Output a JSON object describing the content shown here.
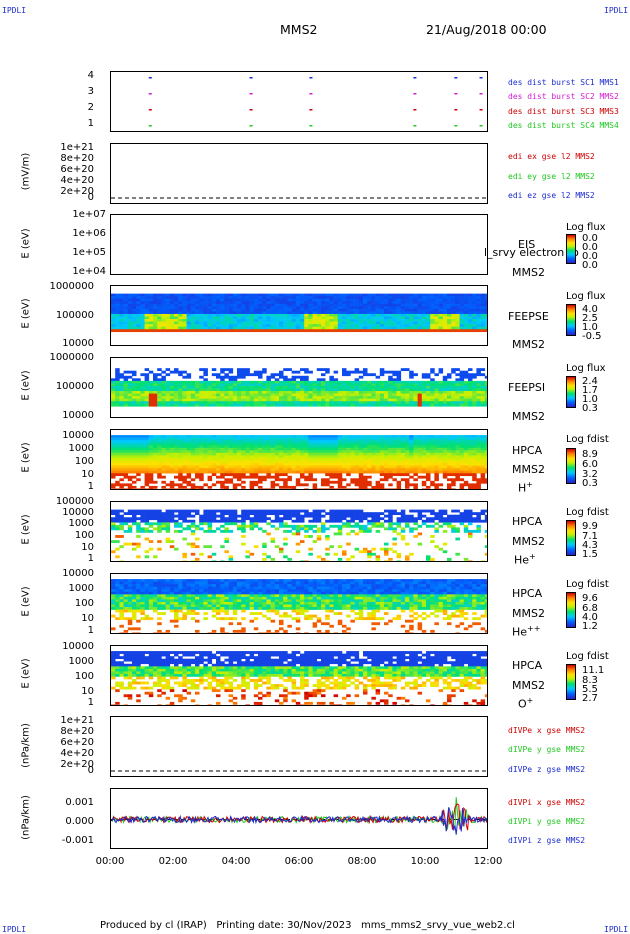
{
  "header": {
    "corner_left_top": "IPDLI",
    "corner_right_top": "IPDLI",
    "corner_left_bottom": "IPDLI",
    "corner_right_bottom": "IPDLI",
    "title": "MMS2",
    "date": "21/Aug/2018 00:00"
  },
  "panels": {
    "p1": {
      "yticks": [
        "4",
        "3",
        "2",
        "1"
      ],
      "legend": [
        {
          "text": "des dist burst SC1 MMS1",
          "color": "#1c2bd0"
        },
        {
          "text": "des dist burst SC2 MMS2",
          "color": "#d21cd2"
        },
        {
          "text": "des dist burst SC3 MMS3",
          "color": "#d00000"
        },
        {
          "text": "des dist burst SC4 MMS4",
          "color": "#20c820"
        }
      ]
    },
    "p2": {
      "ylabel": "(mV/m)",
      "yticks": [
        "1e+21",
        "8e+20",
        "6e+20",
        "4e+20",
        "2e+20",
        "0"
      ],
      "legend": [
        {
          "text": "edi ex gse l2 MMS2",
          "color": "#d00000"
        },
        {
          "text": "edi ey gse l2 MMS2",
          "color": "#20c820"
        },
        {
          "text": "edi ez gse l2 MMS2",
          "color": "#1c2bd0"
        }
      ]
    },
    "p3": {
      "ylabel": "E (eV)",
      "yticks": [
        "1e+07",
        "1e+06",
        "1e+05",
        "1e+04"
      ],
      "instrument": "EIS",
      "overlay": "l_srvy electron to",
      "spacecraft": "MMS2",
      "cb_title": "Log flux",
      "cb_values": [
        "0.0",
        "0.0",
        "0.0",
        "0.0"
      ]
    },
    "p4": {
      "ylabel": "E (eV)",
      "yticks": [
        "1000000",
        "100000",
        "10000"
      ],
      "instrument": "FEEPSE",
      "spacecraft": "MMS2",
      "cb_title": "Log flux",
      "cb_values": [
        "4.0",
        "2.5",
        "1.0",
        "-0.5"
      ]
    },
    "p5": {
      "ylabel": "E (eV)",
      "yticks": [
        "1000000",
        "100000",
        "10000"
      ],
      "instrument": "FEEPSI",
      "spacecraft": "MMS2",
      "cb_title": "Log flux",
      "cb_values": [
        "2.4",
        "1.7",
        "1.0",
        "0.3"
      ]
    },
    "p6": {
      "ylabel": "E (eV)",
      "yticks": [
        "10000",
        "1000",
        "100",
        "10",
        "1"
      ],
      "instrument": "HPCA",
      "spacecraft": "MMS2",
      "species": "H",
      "species_sup": "+",
      "cb_title": "Log fdist",
      "cb_values": [
        "8.9",
        "6.0",
        "3.2",
        "0.3"
      ]
    },
    "p7": {
      "ylabel": "E (eV)",
      "yticks": [
        "100000",
        "10000",
        "1000",
        "100",
        "10",
        "1"
      ],
      "instrument": "HPCA",
      "spacecraft": "MMS2",
      "species": "He",
      "species_sup": "+",
      "cb_title": "Log fdist",
      "cb_values": [
        "9.9",
        "7.1",
        "4.3",
        "1.5"
      ]
    },
    "p8": {
      "ylabel": "E (eV)",
      "yticks": [
        "10000",
        "1000",
        "100",
        "10",
        "1"
      ],
      "instrument": "HPCA",
      "spacecraft": "MMS2",
      "species": "He",
      "species_sup": "++",
      "cb_title": "Log fdist",
      "cb_values": [
        "9.6",
        "6.8",
        "4.0",
        "1.2"
      ]
    },
    "p9": {
      "ylabel": "E (eV)",
      "yticks": [
        "10000",
        "1000",
        "100",
        "10",
        "1"
      ],
      "instrument": "HPCA",
      "spacecraft": "MMS2",
      "species": "O",
      "species_sup": "+",
      "cb_title": "Log fdist",
      "cb_values": [
        "11.1",
        "8.3",
        "5.5",
        "2.7"
      ]
    },
    "p10": {
      "ylabel": "(nPa/km)",
      "yticks": [
        "1e+21",
        "8e+20",
        "6e+20",
        "4e+20",
        "2e+20",
        "0"
      ],
      "legend": [
        {
          "text": "dIVPe x gse MMS2",
          "color": "#d00000"
        },
        {
          "text": "dIVPe y gse MMS2",
          "color": "#20c820"
        },
        {
          "text": "dIVPe z gse MMS2",
          "color": "#1c2bd0"
        }
      ]
    },
    "p11": {
      "ylabel": "(nPa/km)",
      "yticks": [
        "0.001",
        "0.000",
        "-0.001"
      ],
      "legend": [
        {
          "text": "dIVPi x gse MMS2",
          "color": "#d00000"
        },
        {
          "text": "dIVPi y gse MMS2",
          "color": "#20c820"
        },
        {
          "text": "dIVPi z gse MMS2",
          "color": "#1c2bd0"
        }
      ]
    }
  },
  "xaxis": {
    "ticks": [
      "00:00",
      "02:00",
      "04:00",
      "06:00",
      "08:00",
      "10:00",
      "12:00"
    ]
  },
  "footer": "Produced by cl (IRAP)   Printing date: 30/Nov/2023   mms_mms2_srvy_vue_web2.cl",
  "chart_data": [
    {
      "type": "scatter",
      "title": "MMS2",
      "x_range_hours": [
        0,
        12
      ],
      "series": [
        {
          "name": "des dist burst SC1 MMS1",
          "y": 4,
          "x_hours": [
            1.2,
            4.4,
            6.3,
            9.6,
            10.9,
            11.7
          ]
        },
        {
          "name": "des dist burst SC2 MMS2",
          "y": 3,
          "x_hours": [
            1.2,
            4.4,
            6.3,
            9.6,
            10.9,
            11.7
          ]
        },
        {
          "name": "des dist burst SC3 MMS3",
          "y": 2,
          "x_hours": [
            1.2,
            4.4,
            6.3,
            9.6,
            10.9,
            11.7
          ]
        },
        {
          "name": "des dist burst SC4 MMS4",
          "y": 1,
          "x_hours": [
            1.2,
            4.4,
            6.3,
            9.6,
            10.9,
            11.7
          ]
        }
      ]
    },
    {
      "type": "line",
      "ylabel": "(mV/m)",
      "ylim": [
        0,
        1e+21
      ],
      "series": [
        {
          "name": "edi ex gse l2 MMS2",
          "values": []
        },
        {
          "name": "edi ey gse l2 MMS2",
          "values": []
        },
        {
          "name": "edi ez gse l2 MMS2",
          "values": []
        }
      ]
    },
    {
      "type": "heatmap",
      "ylabel": "E (eV)",
      "instrument": "EIS",
      "scale": "log",
      "ylim": [
        10000.0,
        10000000.0
      ]
    },
    {
      "type": "heatmap",
      "ylabel": "E (eV)",
      "instrument": "FEEPSE",
      "scale": "log",
      "ylim": [
        10000.0,
        1000000.0
      ]
    },
    {
      "type": "heatmap",
      "ylabel": "E (eV)",
      "instrument": "FEEPSI",
      "scale": "log",
      "ylim": [
        10000.0,
        1000000.0
      ]
    },
    {
      "type": "heatmap",
      "ylabel": "E (eV)",
      "instrument": "HPCA H+",
      "scale": "log",
      "ylim": [
        1,
        10000.0
      ]
    },
    {
      "type": "heatmap",
      "ylabel": "E (eV)",
      "instrument": "HPCA He+",
      "scale": "log",
      "ylim": [
        1,
        100000.0
      ]
    },
    {
      "type": "heatmap",
      "ylabel": "E (eV)",
      "instrument": "HPCA He++",
      "scale": "log",
      "ylim": [
        1,
        10000.0
      ]
    },
    {
      "type": "heatmap",
      "ylabel": "E (eV)",
      "instrument": "HPCA O+",
      "scale": "log",
      "ylim": [
        1,
        10000.0
      ]
    },
    {
      "type": "line",
      "ylabel": "(nPa/km)",
      "ylim": [
        0,
        1e+21
      ],
      "series": [
        {
          "name": "dIVPe x gse MMS2",
          "values": []
        },
        {
          "name": "dIVPe y gse MMS2",
          "values": []
        },
        {
          "name": "dIVPe z gse MMS2",
          "values": []
        }
      ]
    },
    {
      "type": "line",
      "ylabel": "(nPa/km)",
      "ylim": [
        -0.0015,
        0.0015
      ],
      "series": [
        {
          "name": "dIVPi x gse MMS2"
        },
        {
          "name": "dIVPi y gse MMS2"
        },
        {
          "name": "dIVPi z gse MMS2"
        }
      ]
    }
  ]
}
